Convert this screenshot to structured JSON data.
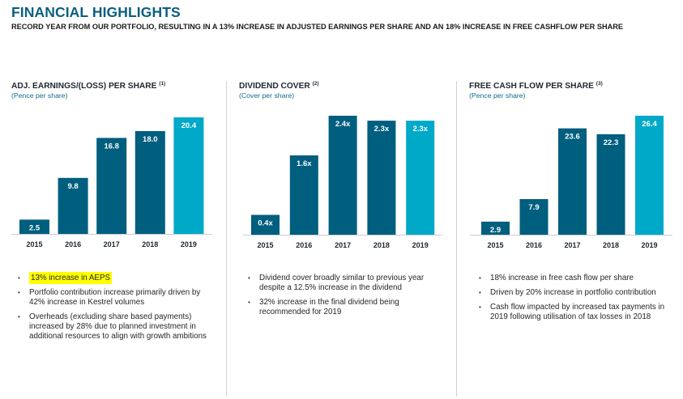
{
  "header": {
    "title": "FINANCIAL HIGHLIGHTS",
    "subtitle": "RECORD YEAR FROM OUR PORTFOLIO, RESULTING IN A 13% INCREASE IN ADJUSTED EARNINGS PER SHARE AND AN 18% INCREASE IN FREE CASHFLOW PER SHARE"
  },
  "colors": {
    "bar_historic": "#005e7e",
    "bar_current": "#00a9c8",
    "title": "#0b5f7f",
    "highlight": "#ffff00",
    "axis": "#c8cdd2"
  },
  "chart_data": [
    {
      "type": "bar",
      "title": "ADJ. EARNINGS/(LOSS) PER SHARE",
      "footnote": "(1)",
      "subtitle": "(Pence per share)",
      "categories": [
        "2015",
        "2016",
        "2017",
        "2018",
        "2019"
      ],
      "values": [
        2.5,
        9.8,
        16.8,
        18.0,
        20.4
      ],
      "labels": [
        "2.5",
        "9.8",
        "16.8",
        "18.0",
        "20.4"
      ],
      "highlight_index": 4,
      "xlabel": "",
      "ylabel": "",
      "ylim": [
        0,
        20.4
      ],
      "grid": false,
      "legend": "none"
    },
    {
      "type": "bar",
      "title": "DIVIDEND COVER",
      "footnote": "(2)",
      "subtitle": "(Cover per share)",
      "categories": [
        "2015",
        "2016",
        "2017",
        "2018",
        "2019"
      ],
      "values": [
        0.4,
        1.6,
        2.4,
        2.3,
        2.3
      ],
      "labels": [
        "0.4x",
        "1.6x",
        "2.4x",
        "2.3x",
        "2.3x"
      ],
      "highlight_index": 4,
      "xlabel": "",
      "ylabel": "",
      "ylim": [
        0,
        2.4
      ],
      "grid": false,
      "legend": "none"
    },
    {
      "type": "bar",
      "title": "FREE CASH FLOW PER SHARE",
      "footnote": "(3)",
      "subtitle": "(Pence per share)",
      "categories": [
        "2015",
        "2016",
        "2017",
        "2018",
        "2019"
      ],
      "values": [
        2.9,
        7.9,
        23.6,
        22.3,
        26.4
      ],
      "labels": [
        "2.9",
        "7.9",
        "23.6",
        "22.3",
        "26.4"
      ],
      "highlight_index": 4,
      "xlabel": "",
      "ylabel": "",
      "ylim": [
        0,
        26.4
      ],
      "grid": false,
      "legend": "none"
    }
  ],
  "panels": [
    {
      "bullets": [
        "13% increase in AEPS",
        "Portfolio contribution increase primarily driven by 42% increase in Kestrel volumes",
        "Overheads (excluding share based payments) increased by 28% due to planned investment in additional resources to align with growth ambitions"
      ],
      "highlighted_bullet": 0
    },
    {
      "bullets": [
        "Dividend cover broadly similar to previous year despite a 12.5% increase in the dividend",
        "32% increase in the final dividend being recommended for 2019"
      ]
    },
    {
      "bullets": [
        "18% increase in free cash flow per share",
        "Driven by 20% increase in portfolio contribution",
        "Cash flow impacted by increased tax payments in 2019 following utilisation of tax losses in 2018"
      ]
    }
  ]
}
